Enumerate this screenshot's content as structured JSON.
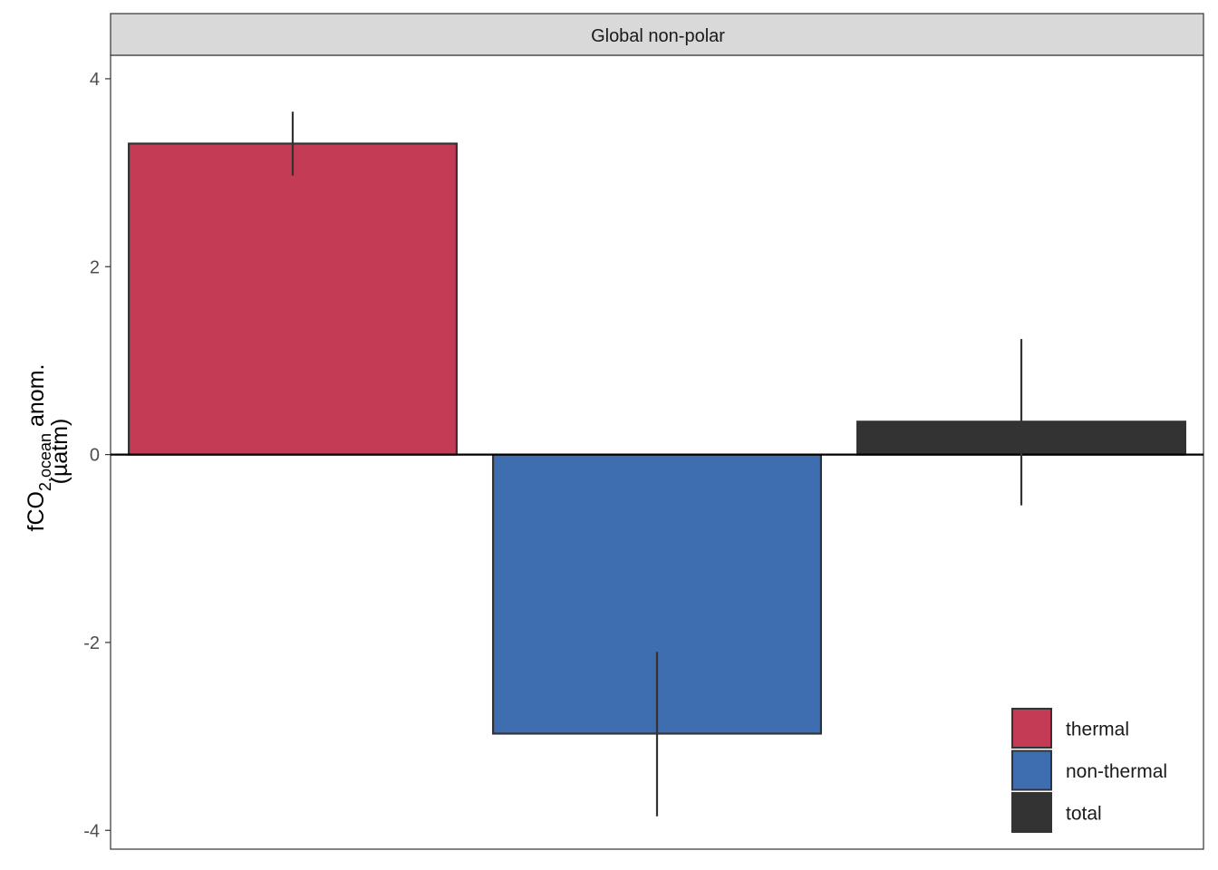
{
  "chart_data": {
    "type": "bar",
    "panel_title": "Global non-polar",
    "categories": [
      "thermal",
      "non-thermal",
      "total"
    ],
    "values": [
      3.31,
      -2.97,
      0.35
    ],
    "error_low": [
      2.97,
      -3.85,
      -0.54
    ],
    "error_high": [
      3.65,
      -2.1,
      1.23
    ],
    "colors": [
      "#c33b55",
      "#3e6eaf",
      "#333333"
    ],
    "ylabel": {
      "prefix": "fCO",
      "subscript": "2,ocean",
      "suffix": " anom.",
      "line2": "(µatm)"
    },
    "ylim": [
      -4.2,
      4.25
    ],
    "yticks": [
      4,
      2,
      0,
      -2,
      -4
    ],
    "ytick_labels": [
      "4",
      "2",
      "0",
      "-2",
      "-4"
    ],
    "legend": {
      "position": "bottom-right",
      "entries": [
        "thermal",
        "non-thermal",
        "total"
      ]
    },
    "grid": false
  }
}
